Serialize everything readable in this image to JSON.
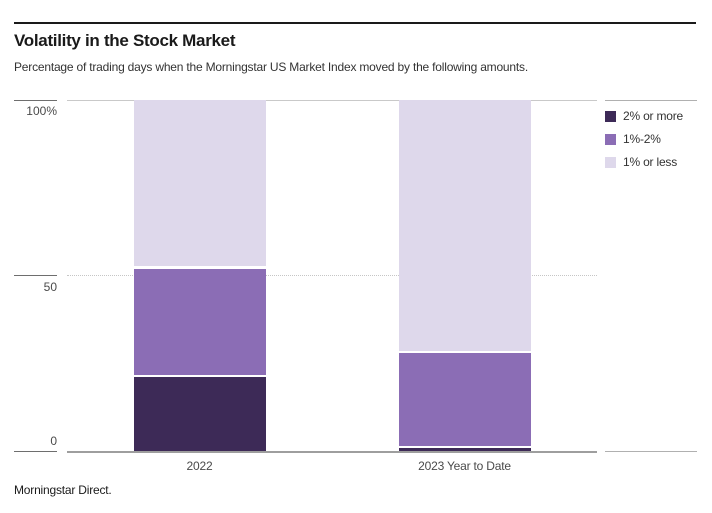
{
  "header": {
    "title": "Volatility in the Stock Market",
    "subtitle": "Percentage of trading days when the Morningstar US Market Index moved by the following amounts."
  },
  "footer": {
    "source": "Morningstar Direct."
  },
  "chart_data": {
    "type": "bar",
    "stacked": true,
    "title": "Volatility in the Stock Market",
    "subtitle": "Percentage of trading days when the Morningstar US Market Index moved by the following amounts.",
    "categories": [
      "2022",
      "2023 Year to Date"
    ],
    "series": [
      {
        "name": "2% or more",
        "color": "#3d2a57",
        "values": [
          21,
          1
        ]
      },
      {
        "name": "1%-2%",
        "color": "#8b6db5",
        "values": [
          31,
          27
        ]
      },
      {
        "name": "1% or less",
        "color": "#ded8eb",
        "values": [
          48,
          72
        ]
      }
    ],
    "ylim": [
      0,
      100
    ],
    "yticks": [
      {
        "value": 0,
        "label": "0"
      },
      {
        "value": 50,
        "label": "50"
      },
      {
        "value": 100,
        "label": "100%"
      }
    ],
    "legend_position": "top-right",
    "grid": {
      "top_line": true,
      "mid_dotted_at": 50,
      "baseline": true
    }
  },
  "colors": {
    "title_rule": "#1a1a1a",
    "grid_top": "#c9c9c9",
    "grid_dotted": "#c6c6c6",
    "baseline": "#9e9e9e",
    "tick": "#6e6e6e",
    "legend_rule": "#b0b0b0",
    "axis_text": "#4a4a4a"
  }
}
